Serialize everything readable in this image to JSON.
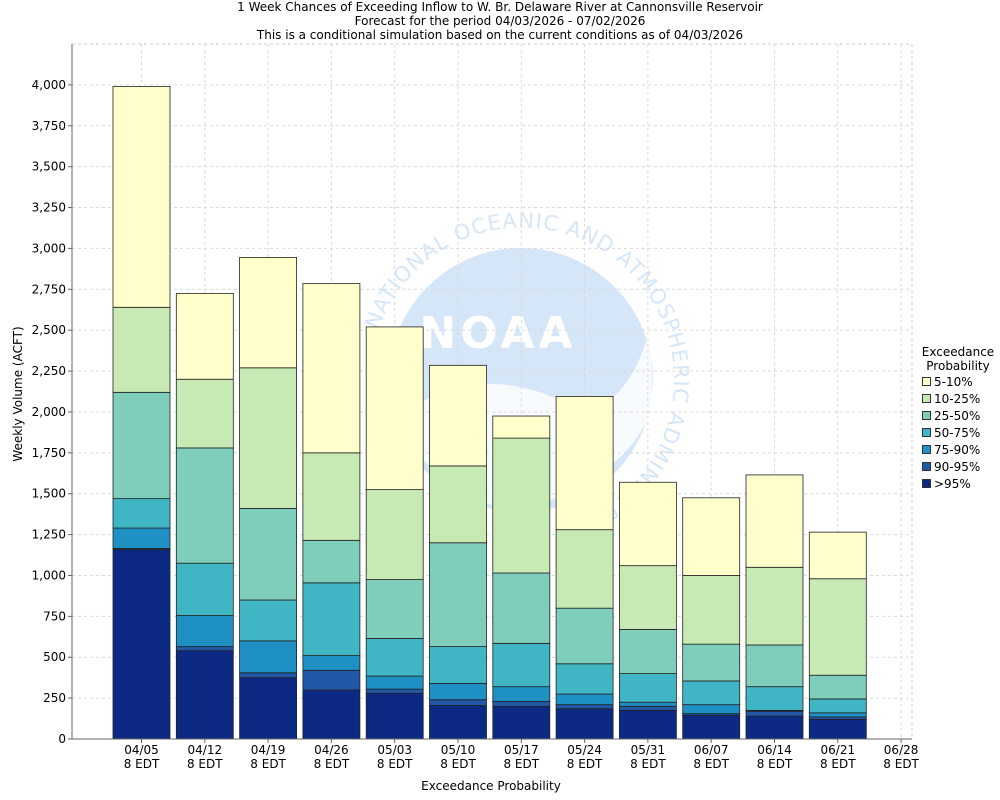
{
  "titles": {
    "line1": "1 Week Chances of Exceeding Inflow to W. Br. Delaware River at Cannonsville Reservoir",
    "line2": "Forecast for the period 04/03/2026 - 07/02/2026",
    "line3": "This is a conditional simulation based on the current conditions as of 04/03/2026"
  },
  "watermark": {
    "text": "NOAA",
    "ring_text": "NATIONAL OCEANIC AND ATMOSPHERIC ADMINISTRATION"
  },
  "legend": {
    "title_line1": "Exceedance",
    "title_line2": "Probability"
  },
  "chart_data": {
    "type": "bar",
    "stacked": true,
    "xlabel": "Exceedance Probability",
    "ylabel": "Weekly Volume (ACFT)",
    "ylim": [
      0,
      4250
    ],
    "yticks": [
      0,
      250,
      500,
      750,
      1000,
      1250,
      1500,
      1750,
      2000,
      2250,
      2500,
      2750,
      3000,
      3250,
      3500,
      3750,
      4000
    ],
    "grid": true,
    "legend_position": "right",
    "categories": [
      {
        "date": "04/05",
        "tz": "8 EDT"
      },
      {
        "date": "04/12",
        "tz": "8 EDT"
      },
      {
        "date": "04/19",
        "tz": "8 EDT"
      },
      {
        "date": "04/26",
        "tz": "8 EDT"
      },
      {
        "date": "05/03",
        "tz": "8 EDT"
      },
      {
        "date": "05/10",
        "tz": "8 EDT"
      },
      {
        "date": "05/17",
        "tz": "8 EDT"
      },
      {
        "date": "05/24",
        "tz": "8 EDT"
      },
      {
        "date": "05/31",
        "tz": "8 EDT"
      },
      {
        "date": "06/07",
        "tz": "8 EDT"
      },
      {
        "date": "06/14",
        "tz": "8 EDT"
      },
      {
        "date": "06/21",
        "tz": "8 EDT"
      },
      {
        "date": "06/28",
        "tz": "8 EDT"
      }
    ],
    "series": [
      {
        "name": ">95%",
        "color": "#0c2a84",
        "tops": [
          1160,
          540,
          375,
          300,
          280,
          205,
          200,
          185,
          175,
          145,
          140,
          120,
          null
        ]
      },
      {
        "name": "90-95%",
        "color": "#2158a8",
        "tops": [
          1165,
          565,
          405,
          420,
          305,
          240,
          230,
          210,
          200,
          155,
          170,
          135,
          null
        ]
      },
      {
        "name": "75-90%",
        "color": "#1f90c3",
        "tops": [
          1290,
          755,
          600,
          510,
          385,
          340,
          320,
          275,
          225,
          210,
          175,
          160,
          null
        ]
      },
      {
        "name": "50-75%",
        "color": "#40b6c5",
        "tops": [
          1470,
          1075,
          850,
          955,
          615,
          565,
          585,
          460,
          400,
          355,
          320,
          245,
          null
        ]
      },
      {
        "name": "25-50%",
        "color": "#7fcdbb",
        "tops": [
          2120,
          1780,
          1410,
          1215,
          975,
          1200,
          1015,
          800,
          670,
          580,
          575,
          390,
          null
        ]
      },
      {
        "name": "10-25%",
        "color": "#c7e9b4",
        "tops": [
          2640,
          2200,
          2270,
          1750,
          1525,
          1670,
          1840,
          1280,
          1060,
          1000,
          1050,
          980,
          null
        ]
      },
      {
        "name": "5-10%",
        "color": "#ffffcc",
        "tops": [
          3990,
          2725,
          2945,
          2785,
          2520,
          2285,
          1975,
          2095,
          1570,
          1475,
          1615,
          1265,
          null
        ]
      }
    ]
  }
}
